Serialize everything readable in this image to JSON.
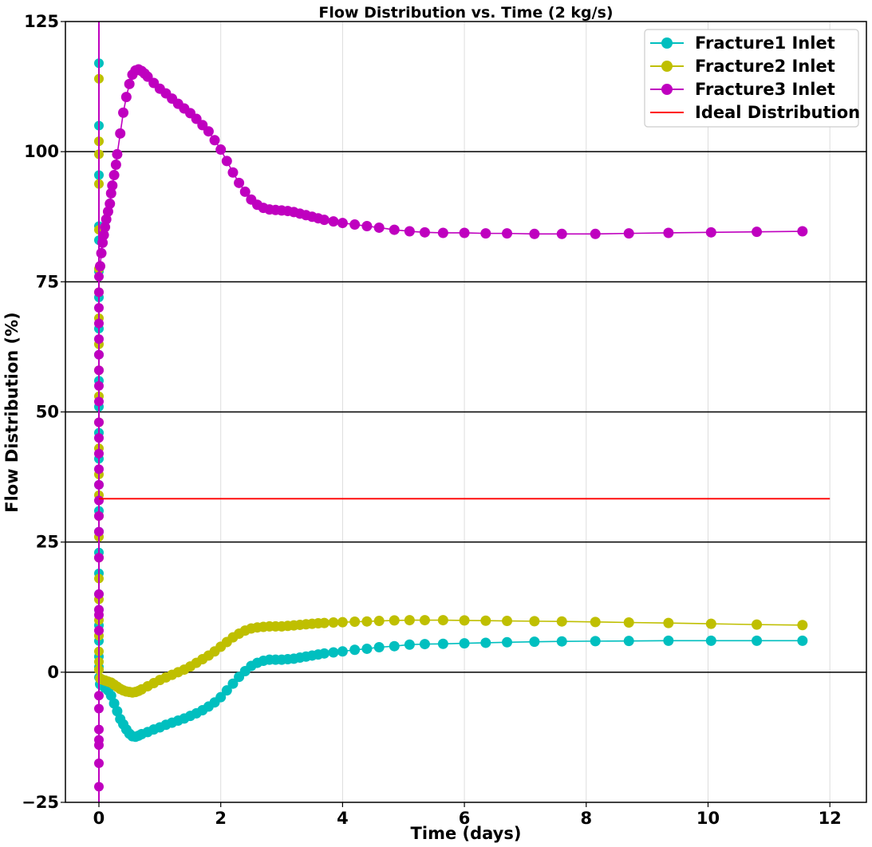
{
  "chart_data": {
    "type": "line",
    "title": "Flow Distribution vs. Time (2 kg/s)",
    "xlabel": "Time (days)",
    "ylabel": "Flow Distribution (%)",
    "xlim": [
      -0.55,
      12.6
    ],
    "ylim": [
      -25,
      125
    ],
    "x_ticks": [
      0,
      2,
      4,
      6,
      8,
      10,
      12
    ],
    "y_ticks": [
      -25,
      0,
      25,
      50,
      75,
      100,
      125
    ],
    "x_grid": true,
    "legend_position": "top-right",
    "series": [
      {
        "name": "Fracture1 Inlet",
        "color": "#00bfbf",
        "marker": "circle",
        "spike_x": 0.0,
        "spike_y": [
          117,
          105,
          95.5,
          85.7,
          83,
          77,
          72,
          66,
          61,
          56,
          51,
          46,
          41,
          36,
          31,
          27,
          23,
          19,
          15,
          12,
          9,
          6,
          3,
          1,
          -1
        ],
        "x": [
          0.02,
          0.05,
          0.1,
          0.15,
          0.2,
          0.25,
          0.3,
          0.35,
          0.4,
          0.45,
          0.5,
          0.55,
          0.6,
          0.65,
          0.7,
          0.8,
          0.9,
          1.0,
          1.1,
          1.2,
          1.3,
          1.4,
          1.5,
          1.6,
          1.7,
          1.8,
          1.9,
          2.0,
          2.1,
          2.2,
          2.3,
          2.4,
          2.5,
          2.6,
          2.7,
          2.8,
          2.9,
          3.0,
          3.1,
          3.2,
          3.3,
          3.4,
          3.5,
          3.6,
          3.7,
          3.85,
          4.0,
          4.2,
          4.4,
          4.6,
          4.85,
          5.1,
          5.35,
          5.65,
          6.0,
          6.35,
          6.7,
          7.15,
          7.6,
          8.15,
          8.7,
          9.35,
          10.05,
          10.8,
          11.55
        ],
        "y": [
          -2.3,
          -2.5,
          -3.0,
          -3.5,
          -4.5,
          -6.0,
          -7.5,
          -9.0,
          -10.0,
          -11.0,
          -11.8,
          -12.3,
          -12.4,
          -12.2,
          -11.9,
          -11.5,
          -11.0,
          -10.6,
          -10.1,
          -9.7,
          -9.3,
          -8.9,
          -8.4,
          -7.9,
          -7.3,
          -6.6,
          -5.8,
          -4.8,
          -3.5,
          -2.2,
          -0.9,
          0.2,
          1.2,
          1.8,
          2.2,
          2.4,
          2.4,
          2.4,
          2.5,
          2.6,
          2.8,
          3.0,
          3.2,
          3.4,
          3.6,
          3.8,
          4.0,
          4.3,
          4.5,
          4.8,
          5.0,
          5.3,
          5.4,
          5.45,
          5.55,
          5.65,
          5.75,
          5.85,
          5.92,
          5.97,
          6.0,
          6.05,
          6.05,
          6.05,
          6.05
        ]
      },
      {
        "name": "Fracture2 Inlet",
        "color": "#bfbf00",
        "marker": "circle",
        "spike_x": 0.0,
        "spike_y": [
          114,
          102,
          99.5,
          93.8,
          85,
          77.5,
          73,
          68,
          63,
          58,
          53,
          48,
          43,
          38,
          34,
          30,
          26,
          22,
          18,
          14,
          10,
          7,
          4,
          2,
          0.5
        ],
        "x": [
          0.02,
          0.05,
          0.1,
          0.15,
          0.2,
          0.25,
          0.3,
          0.35,
          0.4,
          0.45,
          0.5,
          0.55,
          0.6,
          0.65,
          0.7,
          0.8,
          0.9,
          1.0,
          1.1,
          1.2,
          1.3,
          1.4,
          1.5,
          1.6,
          1.7,
          1.8,
          1.9,
          2.0,
          2.1,
          2.2,
          2.3,
          2.4,
          2.5,
          2.6,
          2.7,
          2.8,
          2.9,
          3.0,
          3.1,
          3.2,
          3.3,
          3.4,
          3.5,
          3.6,
          3.7,
          3.85,
          4.0,
          4.2,
          4.4,
          4.6,
          4.85,
          5.1,
          5.35,
          5.65,
          6.0,
          6.35,
          6.7,
          7.15,
          7.6,
          8.15,
          8.7,
          9.35,
          10.05,
          10.8,
          11.55
        ],
        "y": [
          -1.2,
          -1.4,
          -1.6,
          -1.8,
          -2.0,
          -2.4,
          -2.8,
          -3.2,
          -3.5,
          -3.7,
          -3.8,
          -3.9,
          -3.8,
          -3.6,
          -3.3,
          -2.7,
          -2.1,
          -1.5,
          -1.0,
          -0.5,
          0.0,
          0.5,
          1.1,
          1.8,
          2.5,
          3.2,
          4.0,
          4.9,
          5.8,
          6.7,
          7.4,
          8.0,
          8.4,
          8.6,
          8.7,
          8.8,
          8.8,
          8.8,
          8.9,
          9.0,
          9.1,
          9.2,
          9.3,
          9.4,
          9.45,
          9.55,
          9.6,
          9.7,
          9.75,
          9.85,
          9.95,
          10.0,
          10.0,
          10.0,
          9.95,
          9.9,
          9.85,
          9.8,
          9.75,
          9.65,
          9.55,
          9.45,
          9.3,
          9.15,
          9.05
        ]
      },
      {
        "name": "Fracture3 Inlet",
        "color": "#bf00bf",
        "marker": "circle",
        "spike_x": 0.0,
        "spike_y": [
          -22,
          -17.5,
          -14,
          -13,
          -11,
          -7,
          -4.5,
          8,
          11,
          12,
          15,
          22,
          27,
          30,
          33,
          36,
          39,
          42,
          45,
          48,
          52,
          55,
          58,
          61,
          64,
          67,
          70,
          73,
          76
        ],
        "x": [
          0.02,
          0.04,
          0.06,
          0.08,
          0.1,
          0.12,
          0.15,
          0.18,
          0.2,
          0.22,
          0.25,
          0.28,
          0.3,
          0.35,
          0.4,
          0.45,
          0.5,
          0.55,
          0.6,
          0.65,
          0.7,
          0.75,
          0.8,
          0.9,
          1.0,
          1.1,
          1.2,
          1.3,
          1.4,
          1.5,
          1.6,
          1.7,
          1.8,
          1.9,
          2.0,
          2.1,
          2.2,
          2.3,
          2.4,
          2.5,
          2.6,
          2.7,
          2.8,
          2.9,
          3.0,
          3.1,
          3.2,
          3.3,
          3.4,
          3.5,
          3.6,
          3.7,
          3.85,
          4.0,
          4.2,
          4.4,
          4.6,
          4.85,
          5.1,
          5.35,
          5.65,
          6.0,
          6.35,
          6.7,
          7.15,
          7.6,
          8.15,
          8.7,
          9.35,
          10.05,
          10.8,
          11.55
        ],
        "y": [
          78,
          80.5,
          82.5,
          84,
          85.5,
          87,
          88.5,
          90,
          92,
          93.5,
          95.5,
          97.5,
          99.5,
          103.5,
          107.5,
          110.5,
          113,
          114.8,
          115.6,
          115.8,
          115.5,
          115,
          114.4,
          113.2,
          112.1,
          111.2,
          110.2,
          109.2,
          108.3,
          107.4,
          106.3,
          105.1,
          103.9,
          102.2,
          100.4,
          98.2,
          96,
          94,
          92.3,
          90.8,
          89.8,
          89.2,
          88.9,
          88.8,
          88.7,
          88.6,
          88.4,
          88.1,
          87.8,
          87.5,
          87.2,
          86.9,
          86.6,
          86.3,
          86,
          85.7,
          85.4,
          85.0,
          84.7,
          84.5,
          84.4,
          84.4,
          84.3,
          84.3,
          84.2,
          84.2,
          84.2,
          84.3,
          84.4,
          84.5,
          84.6,
          84.7
        ]
      },
      {
        "name": "Ideal Distribution",
        "color": "#ff0000",
        "marker": "none",
        "x": [
          0,
          12
        ],
        "y": [
          33.33,
          33.33
        ]
      }
    ]
  }
}
